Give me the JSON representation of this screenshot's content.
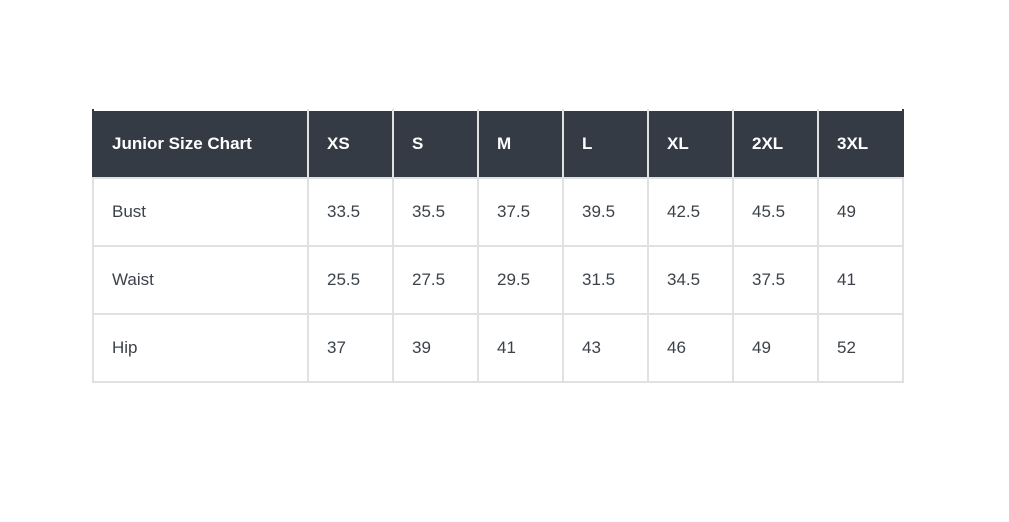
{
  "chart_data": {
    "type": "table",
    "title": "Junior Size Chart",
    "size_columns": [
      "XS",
      "S",
      "M",
      "L",
      "XL",
      "2XL",
      "3XL"
    ],
    "rows": [
      {
        "label": "Bust",
        "values": [
          "33.5",
          "35.5",
          "37.5",
          "39.5",
          "42.5",
          "45.5",
          "49"
        ]
      },
      {
        "label": "Waist",
        "values": [
          "25.5",
          "27.5",
          "29.5",
          "31.5",
          "34.5",
          "37.5",
          "41"
        ]
      },
      {
        "label": "Hip",
        "values": [
          "37",
          "39",
          "41",
          "43",
          "46",
          "49",
          "52"
        ]
      }
    ]
  },
  "colors": {
    "header_background": "#353b44",
    "header_text": "#ffffff",
    "body_text": "#3c4249",
    "border": "#e0e1e2",
    "page_background": "#ffffff"
  }
}
